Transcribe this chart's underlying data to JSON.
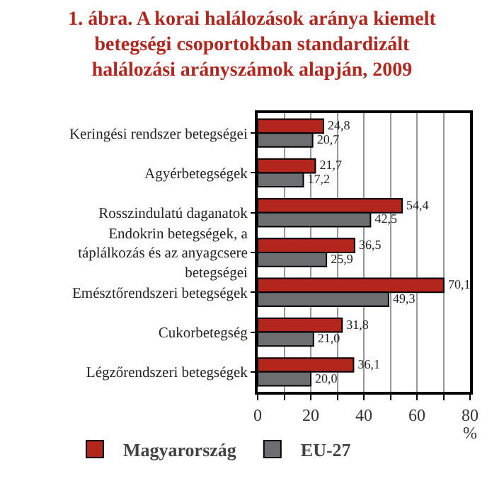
{
  "chart_data": {
    "type": "bar",
    "orientation": "horizontal",
    "title": "1. ábra. A korai halálozások aránya kiemelt betegségi csoportokban standardizált halálozási arányszámok alapján, 2009",
    "xlabel": "%",
    "categories": [
      "Keringési rendszer betegségei",
      "Agyérbetegségek",
      "Rosszindulatú daganatok",
      "Endokrin betegségek, a táplálkozás és az anyagcsere betegségei",
      "Emésztőrendszeri betegségek",
      "Cukorbetegség",
      "Légzőrendszeri betegségek"
    ],
    "series": [
      {
        "name": "Magyarország",
        "color": "#b3261e",
        "values": [
          24.8,
          21.7,
          54.4,
          36.5,
          70.1,
          31.8,
          36.1
        ],
        "value_labels": [
          "24,8",
          "21,7",
          "54,4",
          "36,5",
          "70,1",
          "31,8",
          "36,1"
        ]
      },
      {
        "name": "EU-27",
        "color": "#6d6e71",
        "values": [
          20.7,
          17.2,
          42.5,
          25.9,
          49.3,
          21.0,
          20.0
        ],
        "value_labels": [
          "20,7",
          "17,2",
          "42,5",
          "25,9",
          "49,3",
          "21,0",
          "20,0"
        ]
      }
    ],
    "xlim": [
      0,
      80
    ],
    "xticks": [
      0,
      {
        "value": 10,
        "label": null
      },
      20,
      {
        "value": 30,
        "label": null
      },
      40,
      {
        "value": 50,
        "label": null
      },
      60,
      {
        "value": 70,
        "label": null
      },
      80
    ],
    "grid": true,
    "legend": "bottom"
  }
}
